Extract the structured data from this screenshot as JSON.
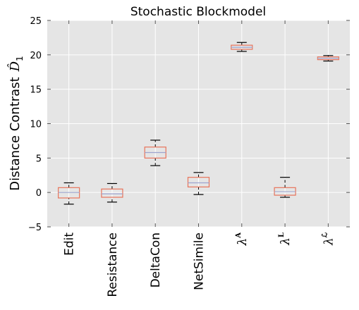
{
  "chart_data": {
    "type": "box",
    "title": "Stochastic Blockmodel",
    "ylabel": "Distance Contrast",
    "ylabel_symbol": "D̂",
    "ylabel_symbol_sub": "1",
    "ylim": [
      -5,
      25
    ],
    "yticks": [
      -5,
      0,
      5,
      10,
      15,
      20,
      25
    ],
    "grid": true,
    "categories": [
      {
        "label": "Edit",
        "base": "",
        "sup": ""
      },
      {
        "label": "Resistance",
        "base": "",
        "sup": ""
      },
      {
        "label": "DeltaCon",
        "base": "",
        "sup": ""
      },
      {
        "label": "NetSimile",
        "base": "",
        "sup": ""
      },
      {
        "label": "",
        "base": "λ",
        "sup": "A"
      },
      {
        "label": "",
        "base": "λ",
        "sup": "L"
      },
      {
        "label": "",
        "base": "λ",
        "sup": "ℒ"
      }
    ],
    "boxes": [
      {
        "whisker_low": -1.7,
        "q1": -0.8,
        "median": 0.0,
        "q3": 0.7,
        "whisker_high": 1.4
      },
      {
        "whisker_low": -1.4,
        "q1": -0.7,
        "median": -0.2,
        "q3": 0.5,
        "whisker_high": 1.3
      },
      {
        "whisker_low": 3.9,
        "q1": 5.0,
        "median": 5.8,
        "q3": 6.6,
        "whisker_high": 7.6
      },
      {
        "whisker_low": -0.3,
        "q1": 0.8,
        "median": 1.4,
        "q3": 2.2,
        "whisker_high": 2.9
      },
      {
        "whisker_low": 20.5,
        "q1": 20.8,
        "median": 21.1,
        "q3": 21.4,
        "whisker_high": 21.8
      },
      {
        "whisker_low": -0.7,
        "q1": -0.4,
        "median": 0.1,
        "q3": 0.7,
        "whisker_high": 2.2
      },
      {
        "whisker_low": 19.1,
        "q1": 19.3,
        "median": 19.5,
        "q3": 19.7,
        "whisker_high": 19.9
      }
    ],
    "colors": {
      "box": "#e8735a",
      "median": "#9da4ce",
      "whisker": "#000000",
      "plot_background": "#e5e5e5",
      "grid": "#ffffff"
    }
  }
}
